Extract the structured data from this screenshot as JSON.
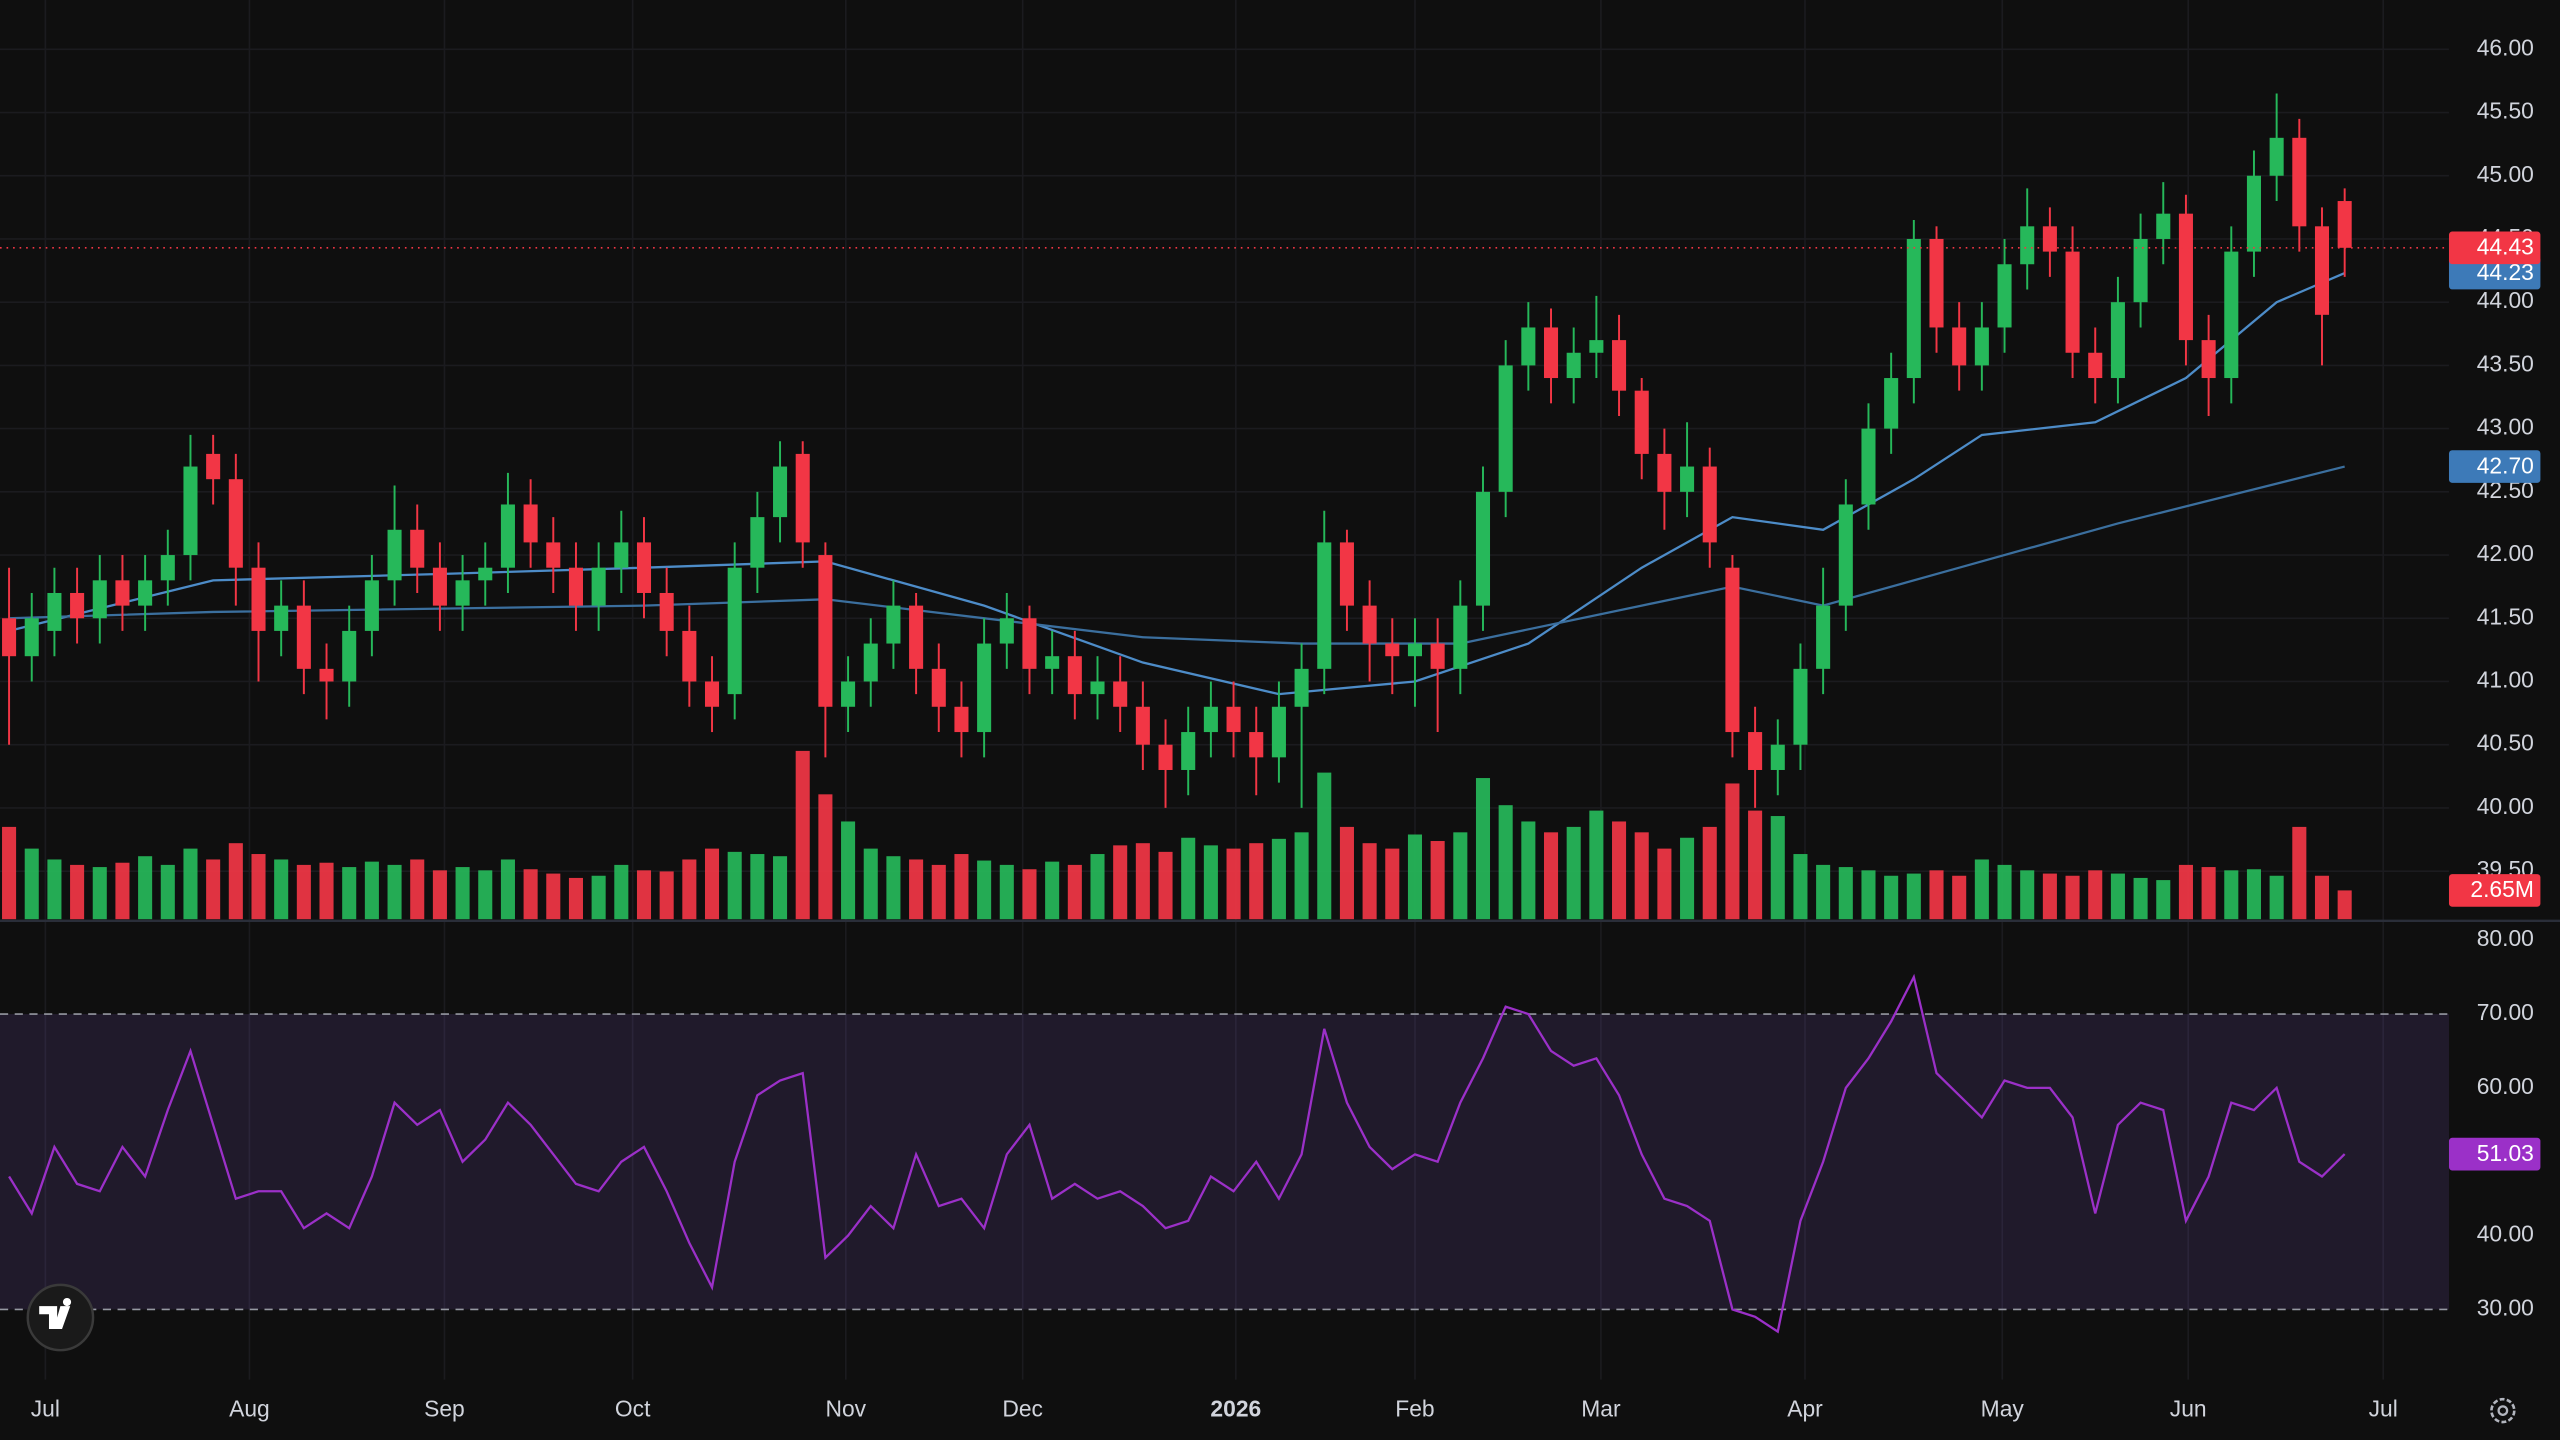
{
  "chart_data": {
    "type": "candlestick",
    "xlim": [
      -0.4,
      107.6
    ],
    "xticks": [
      {
        "value": 1.6,
        "label": "Jul"
      },
      {
        "value": 10.6,
        "label": "Aug"
      },
      {
        "value": 19.2,
        "label": "Sep"
      },
      {
        "value": 27.5,
        "label": "Oct"
      },
      {
        "value": 36.9,
        "label": "Nov"
      },
      {
        "value": 44.7,
        "label": "Dec"
      },
      {
        "value": 54.1,
        "label": "2026",
        "emphasis": true
      },
      {
        "value": 62.0,
        "label": "Feb"
      },
      {
        "value": 70.2,
        "label": "Mar"
      },
      {
        "value": 79.2,
        "label": "Apr"
      },
      {
        "value": 87.9,
        "label": "May"
      },
      {
        "value": 96.1,
        "label": "Jun"
      },
      {
        "value": 104.7,
        "label": "Jul"
      }
    ],
    "ylim": [
      39.12,
      46.39
    ],
    "yticks": [
      {
        "value": 39.5,
        "label": "39.50"
      },
      {
        "value": 40.0,
        "label": "40.00"
      },
      {
        "value": 40.5,
        "label": "40.50"
      },
      {
        "value": 41.0,
        "label": "41.00"
      },
      {
        "value": 41.5,
        "label": "41.50"
      },
      {
        "value": 42.0,
        "label": "42.00"
      },
      {
        "value": 42.5,
        "label": "42.50"
      },
      {
        "value": 43.0,
        "label": "43.00"
      },
      {
        "value": 43.5,
        "label": "43.50"
      },
      {
        "value": 44.0,
        "label": "44.00"
      },
      {
        "value": 44.5,
        "label": "44.50"
      },
      {
        "value": 45.0,
        "label": "45.00"
      },
      {
        "value": 45.5,
        "label": "45.50"
      },
      {
        "value": 46.0,
        "label": "46.00"
      }
    ],
    "grid": true,
    "up_color": "#26b85a",
    "down_color": "#f23645",
    "x": [
      0,
      1,
      2,
      3,
      4,
      5,
      6,
      7,
      8,
      9,
      10,
      11,
      12,
      13,
      14,
      15,
      16,
      17,
      18,
      19,
      20,
      21,
      22,
      23,
      24,
      25,
      26,
      27,
      28,
      29,
      30,
      31,
      32,
      33,
      34,
      35,
      36,
      37,
      38,
      39,
      40,
      41,
      42,
      43,
      44,
      45,
      46,
      47,
      48,
      49,
      50,
      51,
      52,
      53,
      54,
      55,
      56,
      57,
      58,
      59,
      60,
      61,
      62,
      63,
      64,
      65,
      66,
      67,
      68,
      69,
      70,
      71,
      72,
      73,
      74,
      75,
      76,
      77,
      78,
      79,
      80,
      81,
      82,
      83,
      84,
      85,
      86,
      87,
      88,
      89,
      90,
      91,
      92,
      93,
      94,
      95,
      96,
      97,
      98,
      99,
      100,
      101,
      102,
      103
    ],
    "open": [
      41.5,
      41.2,
      41.4,
      41.7,
      41.5,
      41.8,
      41.6,
      41.8,
      42.0,
      42.8,
      42.6,
      41.9,
      41.4,
      41.6,
      41.1,
      41.0,
      41.4,
      41.8,
      42.2,
      41.9,
      41.6,
      41.8,
      41.9,
      42.4,
      42.1,
      41.9,
      41.6,
      41.9,
      42.1,
      41.7,
      41.4,
      41.0,
      40.9,
      41.9,
      42.3,
      42.8,
      42.0,
      40.8,
      41.0,
      41.3,
      41.6,
      41.1,
      40.8,
      40.6,
      41.3,
      41.5,
      41.1,
      41.2,
      40.9,
      41.0,
      40.8,
      40.5,
      40.3,
      40.6,
      40.8,
      40.6,
      40.4,
      40.8,
      41.1,
      42.1,
      41.6,
      41.3,
      41.2,
      41.3,
      41.1,
      41.6,
      42.5,
      43.5,
      43.8,
      43.4,
      43.6,
      43.7,
      43.3,
      42.8,
      42.5,
      42.7,
      41.9,
      40.6,
      40.3,
      40.5,
      41.1,
      41.6,
      42.4,
      43.0,
      43.4,
      44.5,
      43.8,
      43.5,
      43.8,
      44.3,
      44.6,
      44.4,
      43.6,
      43.4,
      44.0,
      44.5,
      44.7,
      43.7,
      43.4,
      44.4,
      45.0,
      45.3,
      44.6,
      44.8
    ],
    "high": [
      41.9,
      41.7,
      41.9,
      41.9,
      42.0,
      42.0,
      42.0,
      42.2,
      42.95,
      42.95,
      42.8,
      42.1,
      41.8,
      41.8,
      41.3,
      41.6,
      42.0,
      42.55,
      42.4,
      42.1,
      42.0,
      42.1,
      42.65,
      42.6,
      42.3,
      42.1,
      42.1,
      42.35,
      42.3,
      41.9,
      41.6,
      41.2,
      42.1,
      42.5,
      42.9,
      42.9,
      42.1,
      41.2,
      41.5,
      41.8,
      41.7,
      41.3,
      41.0,
      41.5,
      41.7,
      41.6,
      41.4,
      41.4,
      41.2,
      41.2,
      41.0,
      40.7,
      40.8,
      41.0,
      41.0,
      40.8,
      41.0,
      41.3,
      42.35,
      42.2,
      41.8,
      41.5,
      41.5,
      41.5,
      41.8,
      42.7,
      43.7,
      44.0,
      43.95,
      43.8,
      44.05,
      43.9,
      43.4,
      43.0,
      43.05,
      42.85,
      42.0,
      40.8,
      40.7,
      41.3,
      41.9,
      42.6,
      43.2,
      43.6,
      44.65,
      44.6,
      44.0,
      44.0,
      44.5,
      44.9,
      44.75,
      44.6,
      43.8,
      44.2,
      44.7,
      44.95,
      44.85,
      43.9,
      44.6,
      45.2,
      45.65,
      45.45,
      44.75,
      44.9
    ],
    "low": [
      40.5,
      41.0,
      41.2,
      41.3,
      41.3,
      41.4,
      41.4,
      41.6,
      41.8,
      42.4,
      41.6,
      41.0,
      41.2,
      40.9,
      40.7,
      40.8,
      41.2,
      41.6,
      41.7,
      41.4,
      41.4,
      41.6,
      41.7,
      41.9,
      41.7,
      41.4,
      41.4,
      41.7,
      41.5,
      41.2,
      40.8,
      40.6,
      40.7,
      41.7,
      42.1,
      41.9,
      40.4,
      40.6,
      40.8,
      41.1,
      40.9,
      40.6,
      40.4,
      40.4,
      41.1,
      40.9,
      40.9,
      40.7,
      40.7,
      40.6,
      40.3,
      40.0,
      40.1,
      40.4,
      40.4,
      40.1,
      40.2,
      40.0,
      40.9,
      41.4,
      41.0,
      40.9,
      40.8,
      40.6,
      40.9,
      41.4,
      42.3,
      43.3,
      43.2,
      43.2,
      43.4,
      43.1,
      42.6,
      42.2,
      42.3,
      41.9,
      40.4,
      40.0,
      40.1,
      40.3,
      40.9,
      41.4,
      42.2,
      42.8,
      43.2,
      43.6,
      43.3,
      43.3,
      43.6,
      44.1,
      44.2,
      43.4,
      43.2,
      43.2,
      43.8,
      44.3,
      43.5,
      43.1,
      43.2,
      44.2,
      44.8,
      44.4,
      43.5,
      44.2
    ],
    "close": [
      41.2,
      41.5,
      41.7,
      41.5,
      41.8,
      41.6,
      41.8,
      42.0,
      42.7,
      42.6,
      41.9,
      41.4,
      41.6,
      41.1,
      41.0,
      41.4,
      41.8,
      42.2,
      41.9,
      41.6,
      41.8,
      41.9,
      42.4,
      42.1,
      41.9,
      41.6,
      41.9,
      42.1,
      41.7,
      41.4,
      41.0,
      40.8,
      41.9,
      42.3,
      42.7,
      42.1,
      40.8,
      41.0,
      41.3,
      41.6,
      41.1,
      40.8,
      40.6,
      41.3,
      41.5,
      41.1,
      41.2,
      40.9,
      41.0,
      40.8,
      40.5,
      40.3,
      40.6,
      40.8,
      40.6,
      40.4,
      40.8,
      41.1,
      42.1,
      41.6,
      41.3,
      41.2,
      41.3,
      41.1,
      41.6,
      42.5,
      43.5,
      43.8,
      43.4,
      43.6,
      43.7,
      43.3,
      42.8,
      42.5,
      42.7,
      42.1,
      40.6,
      40.3,
      40.5,
      41.1,
      41.6,
      42.4,
      43.0,
      43.4,
      44.5,
      43.8,
      43.5,
      43.8,
      44.3,
      44.6,
      44.4,
      43.6,
      43.4,
      44.0,
      44.5,
      44.7,
      43.7,
      43.4,
      44.4,
      45.0,
      45.3,
      44.6,
      43.9,
      44.43
    ],
    "moving_averages": [
      {
        "color": "#4d8cc8",
        "label_color": "#3d7ab8",
        "last_label": "44.23",
        "x": [
          0,
          9,
          19,
          28,
          36,
          43,
          50,
          56,
          62,
          67,
          72,
          76,
          80,
          84,
          87,
          92,
          96,
          100,
          103
        ],
        "values": [
          41.4,
          41.8,
          41.85,
          41.9,
          41.95,
          41.6,
          41.15,
          40.9,
          41.0,
          41.3,
          41.9,
          42.3,
          42.2,
          42.6,
          42.95,
          43.05,
          43.4,
          44.0,
          44.23
        ]
      },
      {
        "color": "#3b6f9e",
        "label_color": "#3d7ab8",
        "last_label": "42.70",
        "x": [
          0,
          9,
          28,
          36,
          50,
          57,
          64,
          72,
          76,
          80,
          86,
          93,
          103
        ],
        "values": [
          41.5,
          41.55,
          41.6,
          41.65,
          41.35,
          41.3,
          41.3,
          41.6,
          41.75,
          41.6,
          41.9,
          42.25,
          42.7
        ]
      }
    ],
    "volume": {
      "ylim": [
        0,
        20
      ],
      "last_label": "2.65M",
      "values": [
        8.5,
        6.5,
        5.5,
        5,
        4.8,
        5.2,
        5.8,
        5,
        6.5,
        5.5,
        7,
        6,
        5.5,
        5,
        5.2,
        4.8,
        5.3,
        5.0,
        5.5,
        4.5,
        4.8,
        4.5,
        5.5,
        4.6,
        4.2,
        3.8,
        4.0,
        5.0,
        4.5,
        4.4,
        5.5,
        6.5,
        6.2,
        6.0,
        5.8,
        15.5,
        11.5,
        9.0,
        6.5,
        5.8,
        5.5,
        5.0,
        6.0,
        5.4,
        5.0,
        4.6,
        5.3,
        5.0,
        6.0,
        6.8,
        7.0,
        6.2,
        7.5,
        6.8,
        6.5,
        7.0,
        7.4,
        8.0,
        13.5,
        8.5,
        7.0,
        6.5,
        7.8,
        7.2,
        8.0,
        13.0,
        10.5,
        9.0,
        8.0,
        8.5,
        10.0,
        9.0,
        8.0,
        6.5,
        7.5,
        8.5,
        12.5,
        10.0,
        9.5,
        6.0,
        5.0,
        4.8,
        4.5,
        4.0,
        4.2,
        4.5,
        4.0,
        5.5,
        5.0,
        4.5,
        4.2,
        4.0,
        4.5,
        4.2,
        3.8,
        3.6,
        5.0,
        4.8,
        4.5,
        4.6,
        4.0,
        8.5,
        4.0,
        2.65
      ]
    },
    "rsi": {
      "color": "#9b30c8",
      "ylim": [
        20.5,
        82.4
      ],
      "yticks": [
        {
          "value": 30,
          "label": "30.00"
        },
        {
          "value": 40,
          "label": "40.00"
        },
        {
          "value": 50,
          "label": "50.00"
        },
        {
          "value": 60,
          "label": "60.00"
        },
        {
          "value": 70,
          "label": "70.00"
        },
        {
          "value": 80,
          "label": "80.00"
        }
      ],
      "bands": [
        30,
        70
      ],
      "values": [
        48,
        43,
        52,
        47,
        46,
        52,
        48,
        57,
        65,
        55,
        45,
        46,
        46,
        41,
        43,
        41,
        48,
        58,
        55,
        57,
        50,
        53,
        58,
        55,
        51,
        47,
        46,
        50,
        52,
        46,
        39,
        33,
        50,
        59,
        61,
        62,
        37,
        40,
        44,
        41,
        51,
        44,
        45,
        41,
        51,
        55,
        45,
        47,
        45,
        46,
        44,
        41,
        42,
        48,
        46,
        50,
        45,
        51,
        68,
        58,
        52,
        49,
        51,
        50,
        58,
        64,
        71,
        70,
        65,
        63,
        64,
        59,
        51,
        45,
        44,
        42,
        30,
        29,
        27,
        42,
        50,
        60,
        64,
        69,
        75,
        62,
        59,
        56,
        61,
        60,
        60,
        56,
        43,
        55,
        58,
        57,
        42,
        48,
        58,
        57,
        60,
        50,
        48,
        51.03
      ]
    }
  }
}
